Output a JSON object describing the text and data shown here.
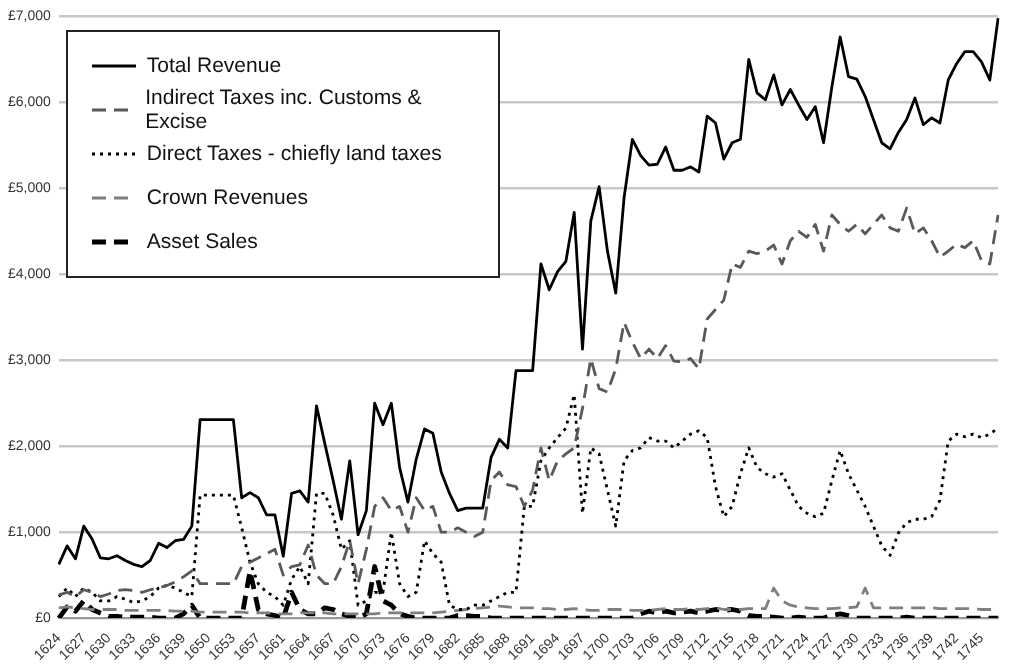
{
  "chart_data": {
    "type": "line",
    "categories": [
      "1624",
      null,
      null,
      "1627",
      null,
      null,
      "1630",
      null,
      null,
      "1633",
      null,
      null,
      "1636",
      null,
      null,
      "1639",
      null,
      null,
      "1650",
      null,
      null,
      "1653",
      null,
      null,
      "1657",
      null,
      null,
      "1661",
      null,
      null,
      "1664",
      null,
      null,
      "1667",
      null,
      null,
      "1670",
      null,
      null,
      "1673",
      null,
      null,
      "1676",
      null,
      null,
      "1679",
      null,
      null,
      "1682",
      null,
      null,
      "1685",
      null,
      null,
      "1688",
      null,
      null,
      "1691",
      null,
      null,
      "1694",
      null,
      null,
      "1697",
      null,
      null,
      "1700",
      null,
      null,
      "1703",
      null,
      null,
      "1706",
      null,
      null,
      "1709",
      null,
      null,
      "1712",
      null,
      null,
      "1715",
      null,
      null,
      "1718",
      null,
      null,
      "1721",
      null,
      null,
      "1724",
      null,
      null,
      "1727",
      null,
      null,
      "1730",
      null,
      null,
      "1733",
      null,
      null,
      "1736",
      null,
      null,
      "1739",
      null,
      null,
      "1742",
      null,
      null,
      "1745",
      null,
      null
    ],
    "series": [
      {
        "name": "Total Revenue",
        "color": "#000000",
        "line_style": "solid",
        "values": [
          625,
          840,
          690,
          1070,
          920,
          700,
          690,
          725,
          670,
          625,
          600,
          670,
          870,
          820,
          900,
          915,
          1070,
          2310,
          2310,
          2310,
          2310,
          2310,
          1400,
          1460,
          1400,
          1200,
          1200,
          720,
          1450,
          1480,
          1350,
          2470,
          2030,
          1600,
          1150,
          1830,
          970,
          1250,
          2500,
          2250,
          2500,
          1750,
          1350,
          1850,
          2200,
          2150,
          1700,
          1450,
          1250,
          1280,
          1280,
          1280,
          1870,
          2080,
          1980,
          2880,
          2880,
          2880,
          4120,
          3820,
          4030,
          4150,
          4720,
          3130,
          4620,
          5020,
          4270,
          3780,
          4890,
          5570,
          5380,
          5270,
          5280,
          5480,
          5210,
          5210,
          5250,
          5190,
          5840,
          5760,
          5340,
          5530,
          5570,
          6500,
          6110,
          6030,
          6320,
          5970,
          6150,
          5970,
          5800,
          5950,
          5530,
          6180,
          6760,
          6300,
          6270,
          6070,
          5800,
          5530,
          5460,
          5650,
          5800,
          6050,
          5740,
          5820,
          5760,
          6260,
          6450,
          6590,
          6590,
          6470,
          6260,
          6980
        ]
      },
      {
        "name": "Indirect Taxes inc. Customs & Excise",
        "color": "#595959",
        "line_style": "dashed",
        "values": [
          270,
          300,
          250,
          330,
          300,
          250,
          280,
          320,
          330,
          320,
          300,
          330,
          350,
          380,
          420,
          480,
          550,
          400,
          400,
          400,
          400,
          400,
          600,
          650,
          700,
          750,
          800,
          500,
          600,
          620,
          850,
          500,
          400,
          400,
          600,
          900,
          400,
          800,
          1300,
          1400,
          1250,
          1300,
          1000,
          1400,
          1250,
          1300,
          1000,
          1000,
          1050,
          1000,
          950,
          1000,
          1600,
          1700,
          1550,
          1530,
          1300,
          1490,
          1980,
          1600,
          1830,
          1910,
          1980,
          2440,
          3020,
          2670,
          2630,
          2900,
          3440,
          3210,
          3020,
          3130,
          3020,
          3170,
          2990,
          2980,
          3020,
          2900,
          3480,
          3590,
          3700,
          4120,
          4080,
          4270,
          4240,
          4270,
          4340,
          4120,
          4390,
          4500,
          4430,
          4580,
          4270,
          4690,
          4580,
          4500,
          4580,
          4470,
          4580,
          4690,
          4540,
          4500,
          4770,
          4470,
          4540,
          4390,
          4200,
          4270,
          4350,
          4310,
          4390,
          4160,
          4120,
          4690
        ]
      },
      {
        "name": "Direct Taxes - chiefly land taxes",
        "color": "#000000",
        "line_style": "dotted",
        "values": [
          250,
          350,
          250,
          350,
          300,
          200,
          200,
          250,
          220,
          180,
          200,
          250,
          350,
          380,
          350,
          300,
          250,
          1430,
          1430,
          1430,
          1430,
          1430,
          1050,
          650,
          400,
          300,
          250,
          150,
          450,
          600,
          400,
          1450,
          1450,
          1200,
          800,
          900,
          150,
          200,
          300,
          300,
          1000,
          400,
          250,
          300,
          900,
          750,
          650,
          150,
          100,
          100,
          150,
          150,
          200,
          250,
          300,
          300,
          1300,
          1300,
          1830,
          1980,
          2100,
          2210,
          2600,
          1220,
          1980,
          1910,
          1490,
          1070,
          1830,
          1950,
          1980,
          2100,
          2060,
          2060,
          1980,
          2060,
          2140,
          2180,
          2100,
          1530,
          1180,
          1300,
          1680,
          1980,
          1750,
          1680,
          1640,
          1680,
          1490,
          1300,
          1220,
          1180,
          1220,
          1600,
          1950,
          1680,
          1490,
          1300,
          1070,
          840,
          730,
          990,
          1110,
          1150,
          1150,
          1180,
          1370,
          2060,
          2140,
          2110,
          2140,
          2100,
          2140,
          2210
        ]
      },
      {
        "name": "Crown Revenues",
        "color": "#7f7f7f",
        "line_style": "dashed",
        "values": [
          120,
          130,
          120,
          110,
          100,
          100,
          100,
          100,
          90,
          90,
          90,
          90,
          90,
          90,
          80,
          80,
          80,
          70,
          70,
          70,
          70,
          70,
          70,
          60,
          60,
          60,
          50,
          50,
          50,
          60,
          60,
          60,
          60,
          50,
          50,
          50,
          50,
          50,
          50,
          60,
          60,
          60,
          60,
          60,
          60,
          60,
          70,
          80,
          90,
          100,
          110,
          120,
          130,
          140,
          130,
          120,
          120,
          120,
          110,
          110,
          100,
          100,
          110,
          100,
          90,
          90,
          100,
          100,
          100,
          90,
          90,
          90,
          100,
          110,
          100,
          100,
          110,
          100,
          110,
          120,
          100,
          100,
          100,
          110,
          110,
          110,
          350,
          200,
          150,
          130,
          120,
          110,
          110,
          110,
          120,
          120,
          130,
          350,
          120,
          120,
          120,
          120,
          120,
          120,
          120,
          120,
          110,
          110,
          110,
          110,
          110,
          100,
          100,
          100
        ]
      },
      {
        "name": "Asset Sales",
        "color": "#000000",
        "line_style": "dashed",
        "values": [
          0,
          130,
          80,
          200,
          100,
          60,
          20,
          20,
          10,
          10,
          10,
          10,
          0,
          0,
          0,
          50,
          150,
          0,
          0,
          0,
          0,
          0,
          0,
          550,
          100,
          50,
          30,
          0,
          300,
          100,
          50,
          50,
          120,
          100,
          50,
          20,
          0,
          50,
          600,
          200,
          150,
          50,
          20,
          0,
          0,
          0,
          0,
          0,
          30,
          30,
          20,
          20,
          0,
          0,
          0,
          0,
          0,
          0,
          0,
          0,
          0,
          0,
          0,
          0,
          0,
          0,
          0,
          0,
          0,
          0,
          50,
          80,
          60,
          80,
          60,
          70,
          80,
          60,
          80,
          100,
          90,
          100,
          80,
          30,
          20,
          20,
          10,
          0,
          0,
          10,
          0,
          0,
          0,
          30,
          50,
          30,
          0,
          0,
          0,
          0,
          0,
          0,
          10,
          0,
          0,
          0,
          0,
          0,
          0,
          0,
          0,
          0,
          0,
          0
        ]
      }
    ],
    "ylim": [
      0,
      7000
    ],
    "yticks": [
      {
        "value": 0,
        "label": "£0"
      },
      {
        "value": 1000,
        "label": "£1,000"
      },
      {
        "value": 2000,
        "label": "£2,000"
      },
      {
        "value": 3000,
        "label": "£3,000"
      },
      {
        "value": 4000,
        "label": "£4,000"
      },
      {
        "value": 5000,
        "label": "£5,000"
      },
      {
        "value": 6000,
        "label": "£6,000"
      },
      {
        "value": 7000,
        "label": "£7,000"
      }
    ],
    "grid": "y",
    "legend": "top left",
    "marker": "none"
  }
}
